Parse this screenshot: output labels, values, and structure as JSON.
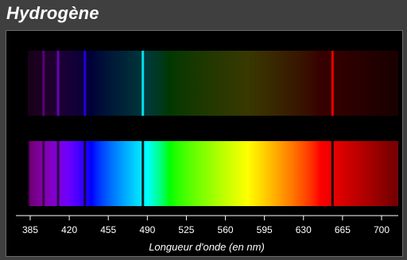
{
  "title": "Hydrogène",
  "axis": {
    "label": "Longueur d'onde (en nm)",
    "min": 370,
    "max": 720,
    "ticks": [
      385,
      420,
      455,
      490,
      525,
      560,
      595,
      630,
      665,
      700
    ]
  },
  "spectrum": {
    "start_nm": 380,
    "end_nm": 720
  },
  "lines": [
    {
      "nm": 397,
      "strength": 0.35
    },
    {
      "nm": 410,
      "strength": 0.6
    },
    {
      "nm": 434,
      "strength": 0.7
    },
    {
      "nm": 486,
      "strength": 0.85
    },
    {
      "nm": 656,
      "strength": 1.0
    }
  ],
  "colors": {
    "background": "#000000",
    "frame": "#3f3f3f",
    "axis": "#ffffff"
  }
}
